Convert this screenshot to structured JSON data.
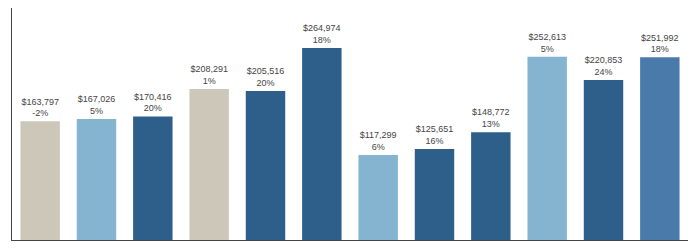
{
  "chart_data": {
    "type": "bar",
    "categories": [
      null,
      null,
      null,
      null,
      null,
      null,
      null,
      null,
      null,
      null,
      null,
      null
    ],
    "values": [
      163797,
      167026,
      170416,
      208291,
      205516,
      264974,
      117299,
      125651,
      148772,
      252613,
      220853,
      251992
    ],
    "value_labels": [
      "$163,797\n-2%",
      "$167,026\n5%",
      "$170,416\n20%",
      "$208,291\n1%",
      "$205,516\n20%",
      "$264,974\n18%",
      "$117,299\n6%",
      "$125,651\n16%",
      "$148,772\n13%",
      "$252,613\n5%",
      "$220,853\n24%",
      "$251,992\n18%"
    ],
    "colors": [
      "#cdc7ba",
      "#85b4d1",
      "#2e5f8a",
      "#cdc7ba",
      "#2e5f8a",
      "#2e5f8a",
      "#85b4d1",
      "#2e5f8a",
      "#2e5f8a",
      "#85b4d1",
      "#2e5f8a",
      "#4a7aaa"
    ],
    "ylim": [
      0,
      320000
    ],
    "data_labels": true,
    "tick_labels": false,
    "grid": false
  }
}
